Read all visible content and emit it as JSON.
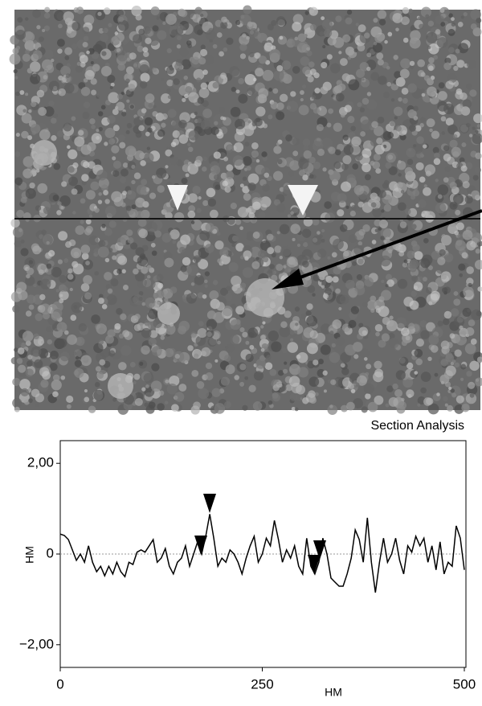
{
  "chart_data": {
    "type": "line",
    "title": "Section Analysis",
    "x_label": "НМ",
    "y_label": "НМ",
    "x": [
      0,
      5,
      10,
      15,
      20,
      25,
      30,
      35,
      40,
      45,
      50,
      55,
      60,
      65,
      70,
      75,
      80,
      85,
      90,
      95,
      100,
      105,
      110,
      115,
      120,
      125,
      130,
      135,
      140,
      145,
      150,
      155,
      160,
      165,
      170,
      175,
      180,
      185,
      190,
      195,
      200,
      205,
      210,
      215,
      220,
      225,
      230,
      235,
      240,
      245,
      250,
      255,
      260,
      265,
      270,
      275,
      280,
      285,
      290,
      295,
      300,
      305,
      310,
      315,
      320,
      325,
      330,
      335,
      340,
      345,
      350,
      355,
      360,
      365,
      370,
      375,
      380,
      385,
      390,
      395,
      400,
      405,
      410,
      415,
      420,
      425,
      430,
      435,
      440,
      445,
      450,
      455,
      460,
      465,
      470,
      475,
      480,
      485,
      490,
      495,
      500
    ],
    "series": [
      {
        "color": "#000000",
        "values": [
          0.44,
          0.41,
          0.32,
          0.09,
          -0.14,
          0,
          -0.18,
          0.18,
          -0.18,
          -0.39,
          -0.27,
          -0.48,
          -0.27,
          -0.44,
          -0.18,
          -0.39,
          -0.5,
          -0.18,
          -0.23,
          0.04,
          0.09,
          0.04,
          0.18,
          0.32,
          -0.18,
          -0.09,
          0.12,
          -0.27,
          -0.44,
          -0.18,
          -0.09,
          0.18,
          -0.27,
          0,
          0.27,
          0,
          0.39,
          0.88,
          0.35,
          -0.27,
          -0.09,
          -0.18,
          0.09,
          0,
          -0.18,
          -0.44,
          -0.09,
          0.18,
          0.39,
          -0.18,
          0,
          0.35,
          0.18,
          0.74,
          0.32,
          -0.18,
          0.09,
          -0.09,
          0.18,
          -0.27,
          -0.44,
          0.35,
          -0.27,
          -0.44,
          -0.18,
          0.35,
          0,
          -0.53,
          -0.62,
          -0.71,
          -0.71,
          -0.44,
          -0.09,
          0.53,
          0.32,
          -0.18,
          0.8,
          -0.18,
          -0.85,
          -0.18,
          0.35,
          -0.18,
          0,
          0.35,
          -0.14,
          -0.44,
          0.18,
          0.04,
          0.39,
          0.18,
          0.35,
          -0.18,
          0.18,
          -0.35,
          0.27,
          -0.44,
          -0.18,
          -0.27,
          0.62,
          0.35,
          -0.35
        ]
      }
    ],
    "xlim": [
      0,
      502
    ],
    "xticks": [
      0,
      250,
      500
    ],
    "ylim": [
      -2.5,
      2.5
    ],
    "yticks": [
      {
        "value": -2,
        "label": "−2,00"
      },
      0,
      {
        "value": 2,
        "label": "2,00"
      }
    ],
    "zero_line": true
  }
}
